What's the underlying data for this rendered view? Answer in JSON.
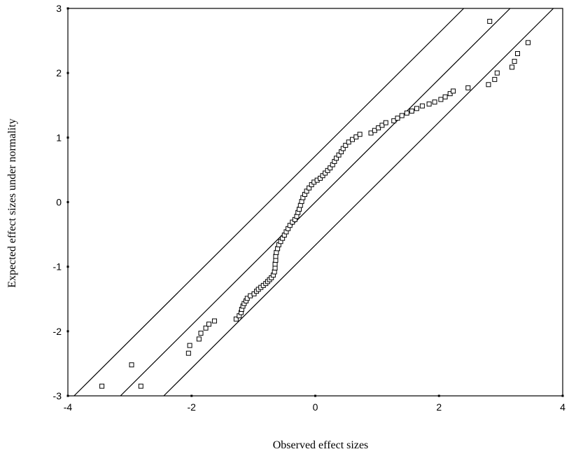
{
  "chart_data": {
    "type": "scatter",
    "title": "",
    "xlabel": "Observed effect sizes",
    "ylabel": "Expected effect sizes under normality",
    "xlim": [
      -4,
      4
    ],
    "ylim": [
      -3,
      3
    ],
    "xticks": [
      "-4",
      "-2",
      "0",
      "2",
      "4"
    ],
    "yticks": [
      "3",
      "2",
      "1",
      "0",
      "-1",
      "-2",
      "-3"
    ],
    "grid": false,
    "legend": "none",
    "marker": "open-square",
    "reference_lines": [
      {
        "x": [
          -3.15,
          3.15
        ],
        "y": [
          -3,
          3
        ]
      },
      {
        "x": [
          -3.9,
          2.4
        ],
        "y": [
          -3,
          3
        ]
      },
      {
        "x": [
          -2.45,
          3.85
        ],
        "y": [
          -3,
          3
        ]
      }
    ],
    "points": [
      [
        -3.45,
        -2.85
      ],
      [
        -2.97,
        -2.52
      ],
      [
        -2.82,
        -2.85
      ],
      [
        -2.05,
        -2.34
      ],
      [
        -2.03,
        -2.22
      ],
      [
        -1.88,
        -2.12
      ],
      [
        -1.85,
        -2.03
      ],
      [
        -1.77,
        -1.95
      ],
      [
        -1.72,
        -1.89
      ],
      [
        -1.63,
        -1.84
      ],
      [
        -1.28,
        -1.81
      ],
      [
        -1.23,
        -1.76
      ],
      [
        -1.2,
        -1.71
      ],
      [
        -1.19,
        -1.66
      ],
      [
        -1.17,
        -1.61
      ],
      [
        -1.15,
        -1.57
      ],
      [
        -1.12,
        -1.53
      ],
      [
        -1.1,
        -1.49
      ],
      [
        -1.05,
        -1.45
      ],
      [
        -0.99,
        -1.42
      ],
      [
        -0.95,
        -1.38
      ],
      [
        -0.92,
        -1.35
      ],
      [
        -0.88,
        -1.32
      ],
      [
        -0.84,
        -1.29
      ],
      [
        -0.8,
        -1.26
      ],
      [
        -0.77,
        -1.23
      ],
      [
        -0.74,
        -1.2
      ],
      [
        -0.71,
        -1.17
      ],
      [
        -0.68,
        -1.13
      ],
      [
        -0.66,
        -1.08
      ],
      [
        -0.65,
        -1.02
      ],
      [
        -0.65,
        -0.96
      ],
      [
        -0.64,
        -0.9
      ],
      [
        -0.64,
        -0.84
      ],
      [
        -0.63,
        -0.78
      ],
      [
        -0.61,
        -0.72
      ],
      [
        -0.59,
        -0.66
      ],
      [
        -0.56,
        -0.61
      ],
      [
        -0.53,
        -0.56
      ],
      [
        -0.5,
        -0.51
      ],
      [
        -0.47,
        -0.46
      ],
      [
        -0.44,
        -0.41
      ],
      [
        -0.41,
        -0.36
      ],
      [
        -0.37,
        -0.31
      ],
      [
        -0.33,
        -0.27
      ],
      [
        -0.3,
        -0.22
      ],
      [
        -0.28,
        -0.16
      ],
      [
        -0.26,
        -0.11
      ],
      [
        -0.24,
        -0.05
      ],
      [
        -0.22,
        0.01
      ],
      [
        -0.2,
        0.07
      ],
      [
        -0.17,
        0.12
      ],
      [
        -0.14,
        0.17
      ],
      [
        -0.1,
        0.22
      ],
      [
        -0.06,
        0.27
      ],
      [
        -0.02,
        0.31
      ],
      [
        0.03,
        0.34
      ],
      [
        0.08,
        0.37
      ],
      [
        0.12,
        0.41
      ],
      [
        0.16,
        0.45
      ],
      [
        0.2,
        0.49
      ],
      [
        0.24,
        0.53
      ],
      [
        0.28,
        0.58
      ],
      [
        0.31,
        0.63
      ],
      [
        0.34,
        0.68
      ],
      [
        0.38,
        0.73
      ],
      [
        0.42,
        0.78
      ],
      [
        0.45,
        0.83
      ],
      [
        0.49,
        0.88
      ],
      [
        0.54,
        0.93
      ],
      [
        0.6,
        0.97
      ],
      [
        0.66,
        1.01
      ],
      [
        0.72,
        1.05
      ],
      [
        0.9,
        1.07
      ],
      [
        0.96,
        1.11
      ],
      [
        1.02,
        1.15
      ],
      [
        1.08,
        1.19
      ],
      [
        1.14,
        1.23
      ],
      [
        1.27,
        1.26
      ],
      [
        1.33,
        1.3
      ],
      [
        1.4,
        1.34
      ],
      [
        1.48,
        1.38
      ],
      [
        1.56,
        1.41
      ],
      [
        1.64,
        1.45
      ],
      [
        1.73,
        1.49
      ],
      [
        1.84,
        1.52
      ],
      [
        1.93,
        1.55
      ],
      [
        2.03,
        1.59
      ],
      [
        2.1,
        1.63
      ],
      [
        2.18,
        1.68
      ],
      [
        2.23,
        1.72
      ],
      [
        2.47,
        1.77
      ],
      [
        2.8,
        1.82
      ],
      [
        2.9,
        1.9
      ],
      [
        2.94,
        2.0
      ],
      [
        3.18,
        2.09
      ],
      [
        3.22,
        2.18
      ],
      [
        3.27,
        2.3
      ],
      [
        3.44,
        2.47
      ],
      [
        2.82,
        2.8
      ]
    ]
  }
}
